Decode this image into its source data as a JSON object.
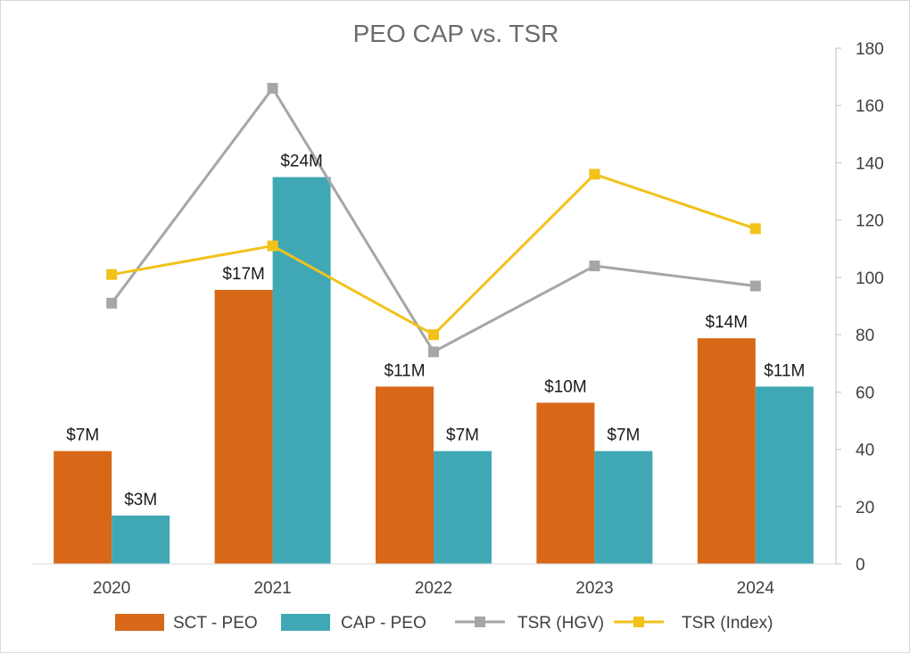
{
  "chart_data": {
    "type": "bar",
    "title": "PEO CAP vs. TSR",
    "categories": [
      "2020",
      "2021",
      "2022",
      "2023",
      "2024"
    ],
    "bar_series": [
      {
        "name": "SCT - PEO",
        "color": "#D86818",
        "values": [
          7,
          17,
          11,
          10,
          14
        ],
        "labels": [
          "$7M",
          "$17M",
          "$11M",
          "$10M",
          "$14M"
        ]
      },
      {
        "name": "CAP - PEO",
        "color": "#40A8B4",
        "values": [
          3,
          24,
          7,
          7,
          11
        ],
        "labels": [
          "$3M",
          "$24M",
          "$7M",
          "$7M",
          "$11M"
        ]
      }
    ],
    "line_series": [
      {
        "name": "TSR (HGV)",
        "color": "#A6A6A6",
        "values": [
          91,
          166,
          74,
          104,
          97
        ]
      },
      {
        "name": "TSR (Index)",
        "color": "#F2C21A",
        "values": [
          101,
          111,
          80,
          136,
          117
        ]
      }
    ],
    "y2_axis": {
      "min": 0,
      "max": 180,
      "step": 20,
      "position": "right"
    },
    "bar_value_axis": {
      "min": 0,
      "max": 32,
      "shown": false
    },
    "grid": false,
    "legend_position": "bottom"
  }
}
